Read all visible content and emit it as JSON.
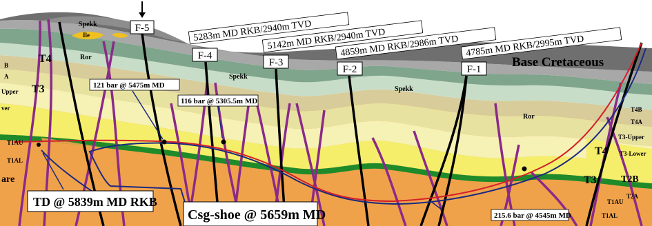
{
  "formations": {
    "spekk_top": "Spekk",
    "ile": "Ile",
    "ror_left": "Ror",
    "spekk_mid": "Spekk",
    "spekk_right": "Spekk",
    "ror_right": "Ror",
    "base_cretaceous": "Base Cretaceous",
    "t4_left": "T4",
    "t3_left": "T3",
    "edge_b": "B",
    "edge_a": "A",
    "edge_upper": "Upper",
    "edge_lower": "ver",
    "edge_are": "are",
    "t1au_left": "T1AU",
    "t1al_left": "T1AL",
    "t4b_right": "T4B",
    "t4a_right": "T4A",
    "t3_upper_right": "T3-Upper",
    "t3_lower_right": "T3-Lower",
    "t4_right": "T4",
    "t3_right": "T3",
    "t2b_right": "T2B",
    "t2a_right": "T2A",
    "t1au_right": "T1AU",
    "t1al_right": "T1AL"
  },
  "faults": {
    "f5": "F-5",
    "f4": "F-4",
    "f3": "F-3",
    "f2": "F-2",
    "f1": "F-1"
  },
  "depth_labels": [
    "5283m MD RKB/2940m TVD",
    "5142m MD RKB/2940m TVD",
    "4859m MD RKB/2986m TVD",
    "4785m MD RKB/2995m TVD"
  ],
  "pressure_labels": {
    "p1": "121 bar @ 5475m MD",
    "p2": "116 bar @ 5305.5m MD",
    "p3": "215.6 bar @ 4545m MD"
  },
  "well_labels": {
    "td": "TD @ 5839m MD RKB",
    "csg_shoe": "Csg-shoe @ 5659m MD"
  },
  "colors": {
    "overburden_dark": "#6f6f6f",
    "overburden_light": "#a8a8a8",
    "green_ror": "#7fa58c",
    "green_pale": "#c8ddc8",
    "tan": "#d8cc9a",
    "yellow": "#f4ee6a",
    "yellow_pale": "#f6f1b4",
    "orange": "#f0a24a",
    "green_bright": "#1f8a2a",
    "fault_black": "#000000",
    "fault_purple": "#8a2a8a",
    "well_red": "#d4202a",
    "well_blue": "#1b2a80"
  }
}
